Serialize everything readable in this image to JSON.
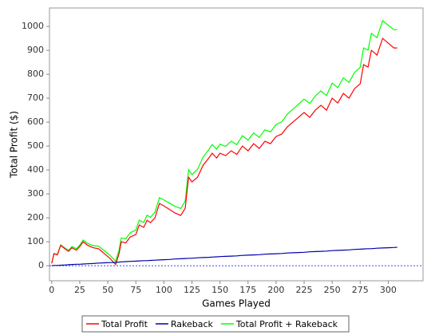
{
  "chart_data": {
    "type": "line",
    "x_label": "Games Played",
    "y_label": "Total Profit ($)",
    "x": [
      0,
      2,
      5,
      8,
      12,
      15,
      18,
      22,
      25,
      28,
      32,
      37,
      42,
      47,
      52,
      57,
      60,
      62,
      66,
      70,
      75,
      78,
      82,
      85,
      88,
      92,
      96,
      100,
      105,
      110,
      115,
      119,
      122,
      125,
      130,
      135,
      140,
      143,
      147,
      150,
      155,
      160,
      165,
      170,
      175,
      180,
      185,
      190,
      195,
      200,
      205,
      210,
      215,
      220,
      225,
      230,
      235,
      240,
      245,
      250,
      255,
      260,
      265,
      270,
      275,
      278,
      282,
      285,
      290,
      295,
      300,
      305,
      308
    ],
    "series": [
      {
        "name": "Total Profit",
        "color": "#ff0000",
        "values": [
          10,
          50,
          45,
          85,
          70,
          60,
          75,
          65,
          80,
          100,
          85,
          75,
          70,
          50,
          30,
          5,
          50,
          100,
          95,
          120,
          130,
          170,
          160,
          190,
          180,
          200,
          260,
          250,
          235,
          220,
          210,
          240,
          370,
          350,
          370,
          420,
          450,
          470,
          450,
          470,
          460,
          480,
          465,
          500,
          480,
          510,
          490,
          520,
          510,
          540,
          550,
          580,
          600,
          620,
          640,
          620,
          650,
          670,
          650,
          700,
          680,
          720,
          700,
          740,
          760,
          840,
          830,
          900,
          880,
          950,
          930,
          910,
          910
        ]
      },
      {
        "name": "Rakeback",
        "color": "#0000aa",
        "values": [
          0,
          1,
          1,
          2,
          3,
          4,
          5,
          6,
          6,
          7,
          8,
          9,
          11,
          12,
          13,
          14,
          15,
          16,
          17,
          18,
          19,
          20,
          21,
          21,
          22,
          23,
          24,
          25,
          26,
          28,
          29,
          30,
          31,
          31,
          33,
          34,
          35,
          36,
          37,
          38,
          39,
          40,
          41,
          43,
          44,
          45,
          46,
          48,
          49,
          50,
          51,
          53,
          54,
          55,
          56,
          58,
          59,
          60,
          61,
          63,
          64,
          65,
          66,
          68,
          69,
          70,
          71,
          71,
          73,
          74,
          75,
          76,
          77
        ]
      },
      {
        "name": "Total Profit + Rakeback",
        "color": "#00ff00",
        "values": [
          10,
          51,
          46,
          87,
          73,
          64,
          80,
          71,
          86,
          107,
          93,
          84,
          81,
          62,
          43,
          19,
          65,
          116,
          112,
          138,
          149,
          190,
          181,
          211,
          202,
          223,
          284,
          275,
          261,
          248,
          239,
          270,
          401,
          381,
          403,
          454,
          485,
          506,
          487,
          508,
          499,
          520,
          506,
          543,
          524,
          555,
          536,
          568,
          559,
          590,
          601,
          633,
          654,
          675,
          696,
          678,
          709,
          730,
          711,
          763,
          744,
          785,
          766,
          808,
          829,
          910,
          901,
          971,
          953,
          1024,
          1005,
          986,
          987
        ]
      }
    ],
    "xlim": [
      -2,
      331
    ],
    "ylim": [
      -63,
      1077
    ],
    "xticks": [
      0,
      25,
      50,
      75,
      100,
      125,
      150,
      175,
      200,
      225,
      250,
      275,
      300
    ],
    "yticks": [
      0,
      100,
      200,
      300,
      400,
      500,
      600,
      700,
      800,
      900,
      1000
    ],
    "zero_line_color": "#0000ff",
    "legend": "bottom"
  }
}
